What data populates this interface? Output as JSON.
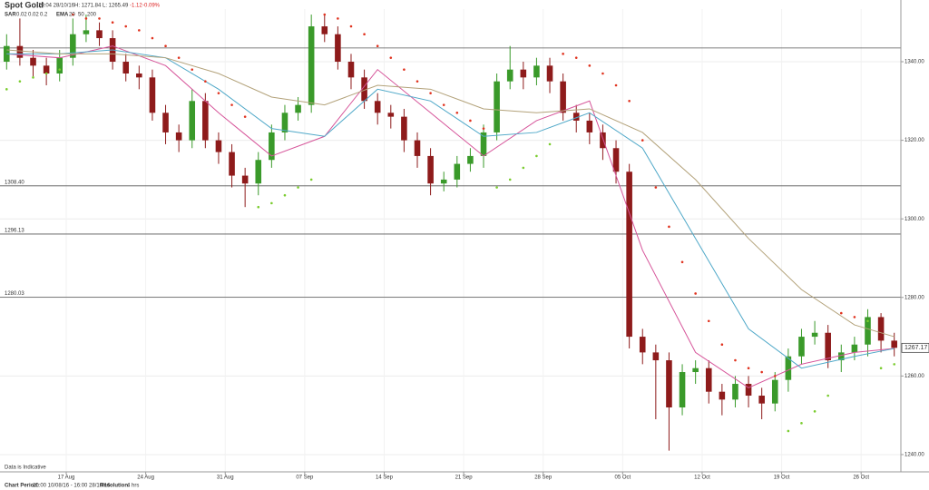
{
  "chart_data": {
    "type": "candlestick",
    "title": "Spot Gold",
    "timestamp": "10:04 28/10/16",
    "high_label": "H: 1271.84",
    "low_label": "L: 1265.49",
    "change": "-1.12",
    "change_pct": "-0.09%",
    "sar_label": "SAR",
    "sar_params": [
      "0.02",
      "0.02",
      "0.2"
    ],
    "ema_label": "EMA",
    "ema_params": [
      "20",
      "50",
      "200"
    ],
    "note": "Data is Indicative",
    "footer": {
      "period_label": "Chart Period:",
      "period": "20:00 10/08/16 - 16:00 28/10/16",
      "resolution_label": "Resolution:",
      "resolution": "4 hrs"
    },
    "up_color": "#3a9a2a",
    "down_color": "#8e1b1b",
    "open": [
      1340,
      1344,
      1341,
      1339,
      1337,
      1341,
      1347,
      1348,
      1346,
      1340,
      1337,
      1336,
      1327,
      1322,
      1320,
      1330,
      1320,
      1317,
      1311,
      1309,
      1315,
      1322,
      1327,
      1329,
      1349,
      1347,
      1340,
      1336,
      1330,
      1327,
      1326,
      1320,
      1316,
      1309,
      1310,
      1314,
      1316,
      1322,
      1335,
      1338,
      1336,
      1339,
      1335,
      1327,
      1325,
      1322,
      1318,
      1312,
      1270,
      1266,
      1264,
      1252,
      1261,
      1262,
      1256,
      1254,
      1258,
      1255,
      1253,
      1259,
      1265,
      1270,
      1271,
      1264,
      1266,
      1268,
      1275,
      1269
    ],
    "high": [
      1347,
      1351,
      1343,
      1341,
      1343,
      1351,
      1352,
      1350,
      1348,
      1342,
      1339,
      1338,
      1329,
      1324,
      1333,
      1332,
      1322,
      1319,
      1313,
      1317,
      1324,
      1329,
      1331,
      1352,
      1352,
      1349,
      1342,
      1338,
      1332,
      1329,
      1328,
      1322,
      1318,
      1312,
      1316,
      1318,
      1324,
      1337,
      1344,
      1340,
      1341,
      1341,
      1337,
      1329,
      1327,
      1324,
      1320,
      1314,
      1272,
      1268,
      1266,
      1263,
      1264,
      1264,
      1258,
      1260,
      1260,
      1257,
      1261,
      1267,
      1272,
      1274,
      1273,
      1268,
      1270,
      1277,
      1276,
      1271
    ],
    "low": [
      1338,
      1339,
      1336,
      1334,
      1335,
      1339,
      1345,
      1344,
      1338,
      1335,
      1333,
      1325,
      1319,
      1317,
      1318,
      1318,
      1314,
      1308,
      1303,
      1306,
      1313,
      1320,
      1325,
      1327,
      1345,
      1338,
      1333,
      1328,
      1324,
      1323,
      1317,
      1313,
      1306,
      1307,
      1308,
      1312,
      1313,
      1320,
      1333,
      1333,
      1334,
      1332,
      1325,
      1322,
      1319,
      1315,
      1309,
      1267,
      1263,
      1249,
      1241,
      1250,
      1258,
      1253,
      1250,
      1252,
      1252,
      1249,
      1251,
      1256,
      1263,
      1268,
      1262,
      1261,
      1264,
      1265,
      1266,
      1265
    ],
    "close": [
      1344,
      1341,
      1339,
      1337,
      1341,
      1347,
      1348,
      1346,
      1340,
      1337,
      1336,
      1327,
      1322,
      1320,
      1330,
      1320,
      1317,
      1311,
      1309,
      1315,
      1322,
      1327,
      1329,
      1349,
      1347,
      1340,
      1336,
      1330,
      1327,
      1326,
      1320,
      1316,
      1309,
      1310,
      1314,
      1316,
      1322,
      1335,
      1338,
      1336,
      1339,
      1335,
      1327,
      1325,
      1322,
      1318,
      1312,
      1270,
      1266,
      1264,
      1252,
      1261,
      1262,
      1256,
      1254,
      1258,
      1255,
      1253,
      1259,
      1265,
      1270,
      1271,
      1264,
      1266,
      1268,
      1275,
      1269,
      1267.17
    ],
    "ema": [
      {
        "color": "#d6559a",
        "x": [
          0,
          4,
          8,
          12,
          16,
          20,
          24,
          28,
          32,
          36,
          40,
          44,
          48,
          52,
          56,
          60,
          64,
          67
        ],
        "values": [
          1342,
          1341,
          1344,
          1339,
          1327,
          1316,
          1321,
          1338,
          1327,
          1316,
          1325,
          1330,
          1292,
          1266,
          1257,
          1263,
          1266,
          1267
        ]
      },
      {
        "color": "#4fa8c8",
        "x": [
          0,
          4,
          8,
          12,
          16,
          20,
          24,
          28,
          32,
          36,
          40,
          44,
          48,
          52,
          56,
          60,
          64,
          67
        ],
        "values": [
          1342,
          1342,
          1343,
          1341,
          1333,
          1323,
          1321,
          1333,
          1330,
          1321,
          1322,
          1327,
          1318,
          1295,
          1272,
          1262,
          1265,
          1267
        ]
      },
      {
        "color": "#b3a27a",
        "x": [
          0,
          4,
          8,
          12,
          16,
          20,
          24,
          28,
          32,
          36,
          40,
          44,
          48,
          52,
          56,
          60,
          64,
          67
        ],
        "values": [
          1343,
          1342,
          1342,
          1341,
          1337,
          1331,
          1329,
          1334,
          1333,
          1328,
          1327,
          1328,
          1322,
          1310,
          1295,
          1282,
          1273,
          1270
        ]
      }
    ],
    "sar": {
      "above_color": "#e0331f",
      "below_color": "#7acc2e",
      "values": [
        1333,
        1335,
        1336,
        1337,
        1338,
        1352,
        1351,
        1351,
        1350,
        1349,
        1348,
        1346,
        1344,
        1341,
        1338,
        1335,
        1332,
        1329,
        1326,
        1303,
        1304,
        1306,
        1308,
        1310,
        1352,
        1351,
        1349,
        1347,
        1344,
        1341,
        1338,
        1335,
        1332,
        1329,
        1327,
        1325,
        1323,
        1308,
        1310,
        1313,
        1316,
        1319,
        1342,
        1341,
        1339,
        1337,
        1334,
        1330,
        1320,
        1308,
        1298,
        1289,
        1281,
        1274,
        1268,
        1264,
        1262,
        1261,
        1260,
        1246,
        1248,
        1251,
        1255,
        1276,
        1275,
        1274,
        1262,
        1263
      ]
    },
    "levels": [
      {
        "value": 1343.5,
        "label": null
      },
      {
        "value": 1308.4,
        "label": "1308.40"
      },
      {
        "value": 1296.13,
        "label": "1296.13"
      },
      {
        "value": 1280.03,
        "label": "1280.03"
      }
    ],
    "xlim": [
      -0.5,
      67.5
    ],
    "xticks": [
      {
        "value": 4.5,
        "label": "17 Aug"
      },
      {
        "value": 10.5,
        "label": "24 Aug"
      },
      {
        "value": 16.5,
        "label": "31 Aug"
      },
      {
        "value": 22.5,
        "label": "07 Sep"
      },
      {
        "value": 28.5,
        "label": "14 Sep"
      },
      {
        "value": 34.5,
        "label": "21 Sep"
      },
      {
        "value": 40.5,
        "label": "28 Sep"
      },
      {
        "value": 46.5,
        "label": "05 Oct"
      },
      {
        "value": 52.5,
        "label": "12 Oct"
      },
      {
        "value": 58.5,
        "label": "19 Oct"
      },
      {
        "value": 64.5,
        "label": "26 Oct"
      }
    ],
    "ylim": [
      1235.6,
      1353.4
    ],
    "yticks": [
      {
        "value": 1240,
        "label": "1240.00"
      },
      {
        "value": 1260,
        "label": "1260.00"
      },
      {
        "value": 1280,
        "label": "1280.00"
      },
      {
        "value": 1300,
        "label": "1300.00"
      },
      {
        "value": 1320,
        "label": "1320.00"
      },
      {
        "value": 1340,
        "label": "1340.00"
      }
    ],
    "grid": true
  }
}
